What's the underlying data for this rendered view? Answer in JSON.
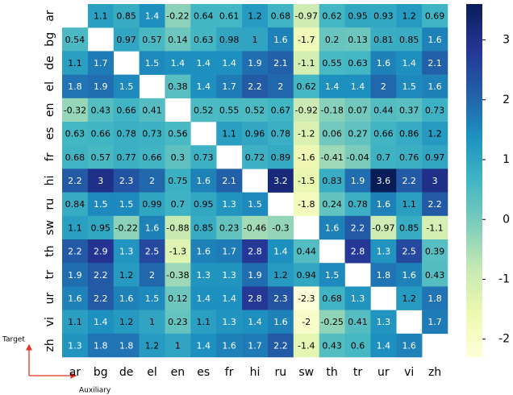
{
  "chart_data": {
    "type": "heatmap",
    "x_categories": [
      "ar",
      "bg",
      "de",
      "el",
      "en",
      "es",
      "fr",
      "hi",
      "ru",
      "sw",
      "th",
      "tr",
      "ur",
      "vi",
      "zh"
    ],
    "y_categories": [
      "ar",
      "bg",
      "de",
      "el",
      "en",
      "es",
      "fr",
      "hi",
      "ru",
      "sw",
      "th",
      "tr",
      "ur",
      "vi",
      "zh"
    ],
    "values": [
      [
        null,
        1.1,
        0.85,
        1.4,
        -0.22,
        0.64,
        0.61,
        1.2,
        0.68,
        -0.97,
        0.62,
        0.95,
        0.93,
        1.2,
        0.69
      ],
      [
        0.54,
        null,
        0.97,
        0.57,
        0.14,
        0.63,
        0.98,
        1,
        1.6,
        -1.7,
        0.2,
        0.13,
        0.81,
        0.85,
        1.6
      ],
      [
        1.1,
        1.7,
        null,
        1.5,
        1.4,
        1.4,
        1.4,
        1.9,
        2.1,
        -1.1,
        0.55,
        0.63,
        1.6,
        1.4,
        2.1
      ],
      [
        1.8,
        1.9,
        1.5,
        null,
        0.38,
        1.4,
        1.7,
        2.2,
        2,
        0.62,
        1.4,
        1.4,
        2,
        1.5,
        1.6
      ],
      [
        -0.32,
        0.43,
        0.66,
        0.41,
        null,
        0.52,
        0.55,
        0.52,
        0.67,
        -0.92,
        -0.18,
        0.07,
        0.44,
        0.37,
        0.73
      ],
      [
        0.63,
        0.66,
        0.78,
        0.73,
        0.56,
        null,
        1.1,
        0.96,
        0.78,
        -1.2,
        0.06,
        0.27,
        0.66,
        0.86,
        1.2
      ],
      [
        0.68,
        0.57,
        0.77,
        0.66,
        0.3,
        0.73,
        null,
        0.72,
        0.89,
        -1.6,
        -0.41,
        -0.04,
        0.7,
        0.76,
        0.97
      ],
      [
        2.2,
        3,
        2.3,
        2,
        0.75,
        1.6,
        2.1,
        null,
        3.2,
        -1.5,
        0.83,
        1.9,
        3.6,
        2.2,
        3
      ],
      [
        0.84,
        1.5,
        1.5,
        0.99,
        0.7,
        0.95,
        1.3,
        1.5,
        null,
        -1.8,
        0.24,
        0.78,
        1.6,
        1.1,
        2.2
      ],
      [
        1.1,
        0.95,
        -0.22,
        1.6,
        -0.88,
        0.85,
        0.23,
        -0.46,
        -0.3,
        null,
        1.6,
        2.2,
        -0.97,
        0.85,
        -1.1
      ],
      [
        2.2,
        2.9,
        1.3,
        2.5,
        -1.3,
        1.6,
        1.7,
        2.8,
        1.4,
        0.44,
        null,
        2.8,
        1.3,
        2.5,
        0.39
      ],
      [
        1.9,
        2.2,
        1.2,
        2,
        -0.38,
        1.3,
        1.3,
        1.9,
        1.2,
        0.94,
        1.5,
        null,
        1.8,
        1.6,
        0.43
      ],
      [
        1.6,
        2.2,
        1.6,
        1.5,
        0.12,
        1.4,
        1.4,
        2.8,
        2.3,
        -2.3,
        0.68,
        1.3,
        null,
        1.2,
        1.8
      ],
      [
        1.1,
        1.4,
        1.2,
        1,
        0.23,
        1.1,
        1.3,
        1.4,
        1.6,
        -2,
        -0.25,
        0.41,
        1.3,
        null,
        1.7
      ],
      [
        1.3,
        1.8,
        1.8,
        1.2,
        1,
        1.4,
        1.6,
        1.7,
        2.2,
        -1.4,
        0.43,
        0.6,
        1.4,
        1.6,
        null
      ]
    ],
    "colormap": [
      "#ffffd9",
      "#edf8b1",
      "#c7e9b4",
      "#7fcdbb",
      "#41b6c4",
      "#1d91c0",
      "#225ea8",
      "#253494",
      "#081d58"
    ],
    "clim": [
      -2.3,
      3.6
    ],
    "cticks": [
      -2,
      -1,
      0,
      1,
      2,
      3
    ],
    "y_annotation": "Target",
    "x_annotation": "Auxiliary"
  }
}
